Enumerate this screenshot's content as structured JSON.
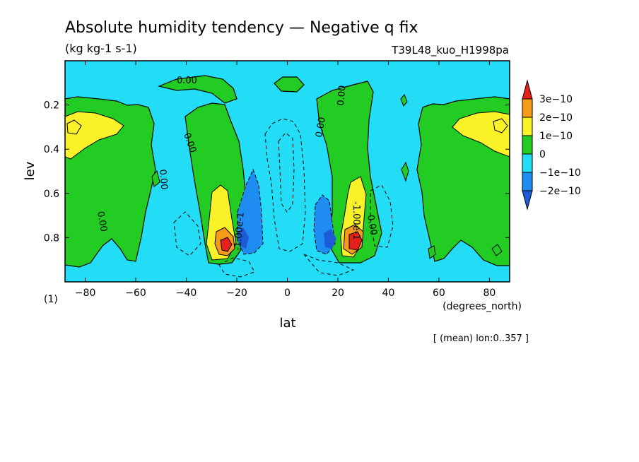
{
  "header": {
    "title": "Absolute humidity tendency — Negative q fix",
    "units": "(kg kg-1 s-1)",
    "run_id": "T39L48_kuo_H1998pa"
  },
  "footer": {
    "page_marker": "(1)",
    "mean_note": "[ (mean) lon:0..357 ]"
  },
  "chart_data": {
    "type": "heatmap",
    "title": "Absolute humidity tendency — Negative q fix",
    "subtitle": "(kg kg-1 s-1)",
    "xlabel": "lat",
    "xunits": "(degrees_north)",
    "ylabel": "lev",
    "xlim": [
      -88,
      88
    ],
    "ylim": [
      0.0,
      1.0
    ],
    "y_inverted": true,
    "x_ticks": [
      -80,
      -60,
      -40,
      -20,
      0,
      20,
      40,
      60,
      80
    ],
    "x_tick_labels": [
      "−80",
      "−60",
      "−40",
      "−20",
      "0",
      "20",
      "40",
      "60",
      "80"
    ],
    "y_ticks": [
      0.2,
      0.4,
      0.6,
      0.8
    ],
    "y_tick_labels": [
      "0.2",
      "0.4",
      "0.6",
      "0.8"
    ],
    "colorbar": {
      "levels": [
        "3e−10",
        "2e−10",
        "1e−10",
        "0",
        "−1e−10",
        "−2e−10"
      ],
      "colors": [
        "#e8201c",
        "#f79c1a",
        "#f9f228",
        "#22cc22",
        "#22ddf5",
        "#1e8cf0",
        "#1e5bd6"
      ]
    },
    "contour_labels": [
      "0.00",
      "0.00",
      "0.00",
      "0.00",
      "0.00",
      "0.00",
      "0.00",
      "-1.00e-1",
      "-1.00e-1"
    ],
    "regions": [
      {
        "name": "tropical-band",
        "value_class": "0 to -1e-10",
        "color": "#22ddf5",
        "lat": [
          -88,
          88
        ],
        "lev": [
          0.02,
          1.0
        ]
      },
      {
        "name": "sh-polar-green",
        "value_class": "0 to 1e-10",
        "color": "#22cc22",
        "lat": [
          -88,
          -58
        ],
        "lev": [
          0.17,
          0.92
        ]
      },
      {
        "name": "nh-polar-green",
        "value_class": "0 to 1e-10",
        "color": "#22cc22",
        "lat": [
          56,
          88
        ],
        "lev": [
          0.17,
          0.92
        ]
      },
      {
        "name": "sh-polar-max",
        "value_class": "1e-10 to 2e-10",
        "color": "#f9f228",
        "lat": [
          -88,
          -74
        ],
        "lev": [
          0.26,
          0.42
        ]
      },
      {
        "name": "nh-polar-max",
        "value_class": "1e-10 to 2e-10",
        "color": "#f9f228",
        "lat": [
          70,
          88
        ],
        "lev": [
          0.25,
          0.4
        ]
      },
      {
        "name": "sh-subtropical-green",
        "value_class": "0 to 1e-10",
        "color": "#22cc22",
        "lat": [
          -40,
          -15
        ],
        "lev": [
          0.18,
          0.92
        ]
      },
      {
        "name": "nh-subtropical-green",
        "value_class": "0 to 1e-10",
        "color": "#22cc22",
        "lat": [
          13,
          42
        ],
        "lev": [
          0.12,
          0.92
        ]
      },
      {
        "name": "upper-nh-green",
        "value_class": "0 to 1e-10",
        "color": "#22cc22",
        "lat": [
          -48,
          -26
        ],
        "lev": [
          0.05,
          0.15
        ]
      },
      {
        "name": "sh-core-yellow",
        "value_class": "1e-10 to 2e-10",
        "color": "#f9f228",
        "lat": [
          -30,
          -19
        ],
        "lev": [
          0.58,
          0.88
        ]
      },
      {
        "name": "sh-core-orange",
        "value_class": "2e-10 to 3e-10",
        "color": "#f79c1a",
        "lat": [
          -28,
          -21
        ],
        "lev": [
          0.76,
          0.87
        ]
      },
      {
        "name": "sh-core-red",
        "value_class": "> 3e-10",
        "color": "#e8201c",
        "lat": [
          -26,
          -22
        ],
        "lev": [
          0.8,
          0.85
        ]
      },
      {
        "name": "nh-core-yellow",
        "value_class": "1e-10 to 2e-10",
        "color": "#f9f228",
        "lat": [
          22,
          30
        ],
        "lev": [
          0.58,
          0.88
        ]
      },
      {
        "name": "nh-core-orange",
        "value_class": "2e-10 to 3e-10",
        "color": "#f79c1a",
        "lat": [
          23,
          30
        ],
        "lev": [
          0.74,
          0.86
        ]
      },
      {
        "name": "nh-core-red",
        "value_class": "> 3e-10",
        "color": "#e8201c",
        "lat": [
          23,
          28
        ],
        "lev": [
          0.77,
          0.85
        ]
      },
      {
        "name": "sh-negative",
        "value_class": "-1e-10 to -2e-10",
        "color": "#1e8cf0",
        "lat": [
          -20,
          -10
        ],
        "lev": [
          0.5,
          0.9
        ]
      },
      {
        "name": "nh-negative",
        "value_class": "-1e-10 to -2e-10",
        "color": "#1e8cf0",
        "lat": [
          11,
          21
        ],
        "lev": [
          0.61,
          0.89
        ]
      }
    ]
  }
}
